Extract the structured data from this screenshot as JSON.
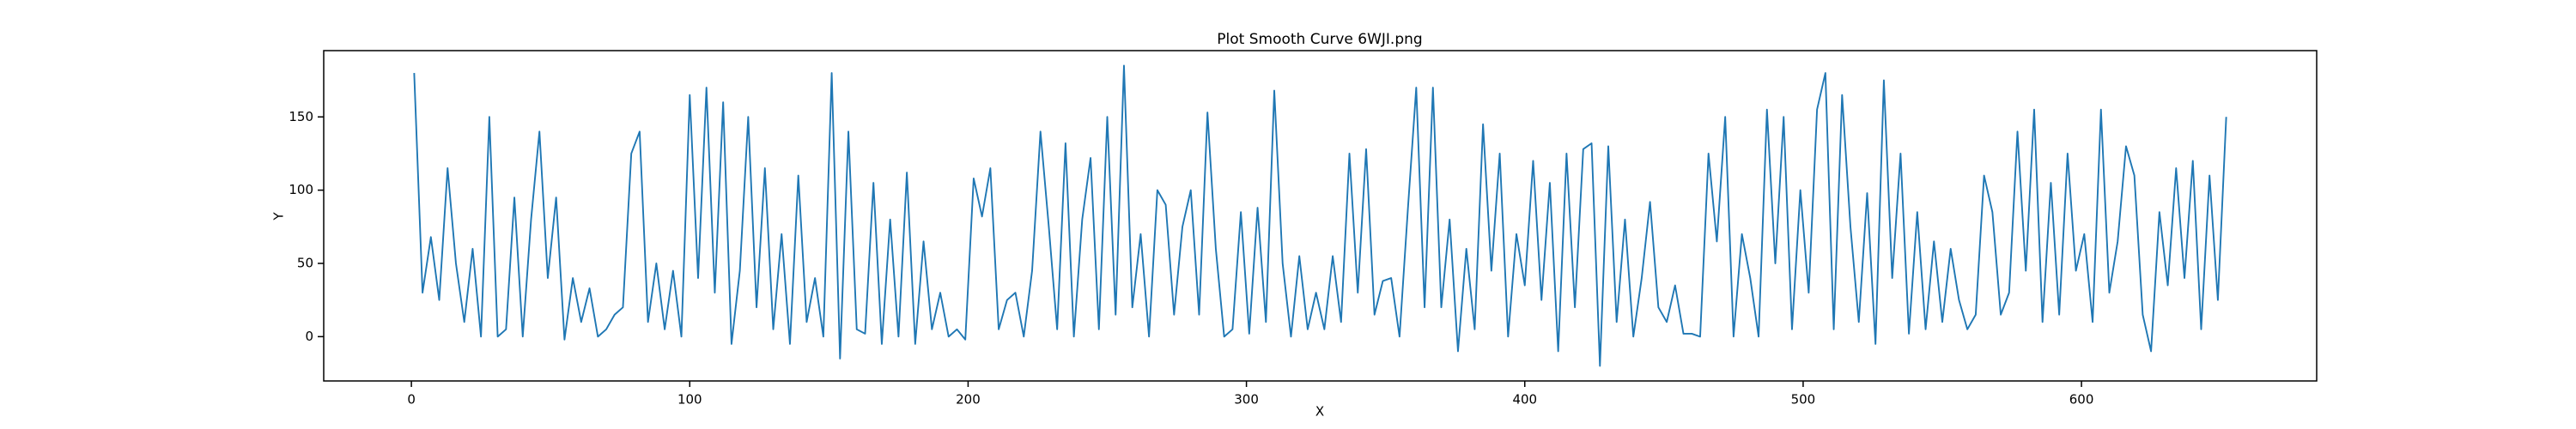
{
  "chart_data": {
    "type": "line",
    "title": "Plot Smooth Curve 6WJI.png",
    "x_label": "X",
    "y_label": "Y",
    "x": [
      1,
      4,
      7,
      10,
      13,
      16,
      19,
      22,
      25,
      28,
      31,
      34,
      37,
      40,
      43,
      46,
      49,
      52,
      55,
      58,
      61,
      64,
      67,
      70,
      73,
      76,
      79,
      82,
      85,
      88,
      91,
      94,
      97,
      100,
      103,
      106,
      109,
      112,
      115,
      118,
      121,
      124,
      127,
      130,
      133,
      136,
      139,
      142,
      145,
      148,
      151,
      154,
      157,
      160,
      163,
      166,
      169,
      172,
      175,
      178,
      181,
      184,
      187,
      190,
      193,
      196,
      199,
      202,
      205,
      208,
      211,
      214,
      217,
      220,
      223,
      226,
      229,
      232,
      235,
      238,
      241,
      244,
      247,
      250,
      253,
      256,
      259,
      262,
      265,
      268,
      271,
      274,
      277,
      280,
      283,
      286,
      289,
      292,
      295,
      298,
      301,
      304,
      307,
      310,
      313,
      316,
      319,
      322,
      325,
      328,
      331,
      334,
      337,
      340,
      343,
      346,
      349,
      352,
      355,
      358,
      361,
      364,
      367,
      370,
      373,
      376,
      379,
      382,
      385,
      388,
      391,
      394,
      397,
      400,
      403,
      406,
      409,
      412,
      415,
      418,
      421,
      424,
      427,
      430,
      433,
      436,
      439,
      442,
      445,
      448,
      451,
      454,
      457,
      460,
      463,
      466,
      469,
      472,
      475,
      478,
      481,
      484,
      487,
      490,
      493,
      496,
      499,
      502,
      505,
      508,
      511,
      514,
      517,
      520,
      523,
      526,
      529,
      532,
      535,
      538,
      541,
      544,
      547,
      550,
      553,
      556,
      559,
      562,
      565,
      568,
      571,
      574,
      577,
      580,
      583,
      586,
      589,
      592,
      595,
      598,
      601,
      604,
      607,
      610,
      613,
      616,
      619,
      622,
      625,
      628,
      631,
      634,
      637,
      640,
      643,
      646,
      649,
      652
    ],
    "series": [
      {
        "color": "#1f77b4",
        "values": [
          180,
          30,
          68,
          25,
          115,
          50,
          10,
          60,
          0,
          150,
          0,
          5,
          95,
          0,
          80,
          140,
          40,
          95,
          -2,
          40,
          10,
          33,
          0,
          5,
          15,
          20,
          125,
          140,
          10,
          50,
          5,
          45,
          0,
          165,
          40,
          170,
          30,
          160,
          -5,
          45,
          150,
          20,
          115,
          5,
          70,
          -5,
          110,
          10,
          40,
          0,
          180,
          -15,
          140,
          5,
          2,
          105,
          -5,
          80,
          0,
          112,
          -5,
          65,
          5,
          30,
          0,
          5,
          -2,
          108,
          82,
          115,
          5,
          25,
          30,
          0,
          45,
          140,
          75,
          5,
          132,
          0,
          80,
          122,
          5,
          150,
          15,
          185,
          20,
          70,
          0,
          100,
          90,
          15,
          75,
          100,
          15,
          153,
          60,
          0,
          5,
          85,
          2,
          88,
          10,
          168,
          50,
          0,
          55,
          5,
          30,
          5,
          55,
          10,
          125,
          30,
          128,
          15,
          38,
          40,
          0,
          87,
          170,
          20,
          170,
          20,
          80,
          -10,
          60,
          5,
          145,
          45,
          125,
          0,
          70,
          35,
          120,
          25,
          105,
          -10,
          125,
          20,
          128,
          132,
          -20,
          130,
          10,
          80,
          0,
          40,
          92,
          20,
          10,
          35,
          2,
          2,
          0,
          125,
          65,
          150,
          0,
          70,
          40,
          0,
          155,
          50,
          150,
          5,
          100,
          30,
          155,
          180,
          5,
          165,
          75,
          10,
          98,
          -5,
          175,
          40,
          125,
          2,
          85,
          5,
          65,
          10,
          60,
          25,
          5,
          15,
          110,
          85,
          15,
          30,
          140,
          45,
          155,
          10,
          105,
          15,
          125,
          45,
          70,
          10,
          155,
          30,
          65,
          130,
          110,
          15,
          -10,
          85,
          35,
          115,
          40,
          120,
          5,
          110,
          25,
          150
        ]
      }
    ],
    "xlim": [
      -31.5,
      684.5
    ],
    "ylim": [
      -30.25,
      195.25
    ],
    "xticks": [
      0,
      100,
      200,
      300,
      400,
      500,
      600
    ],
    "yticks": [
      0,
      50,
      100,
      150
    ]
  }
}
